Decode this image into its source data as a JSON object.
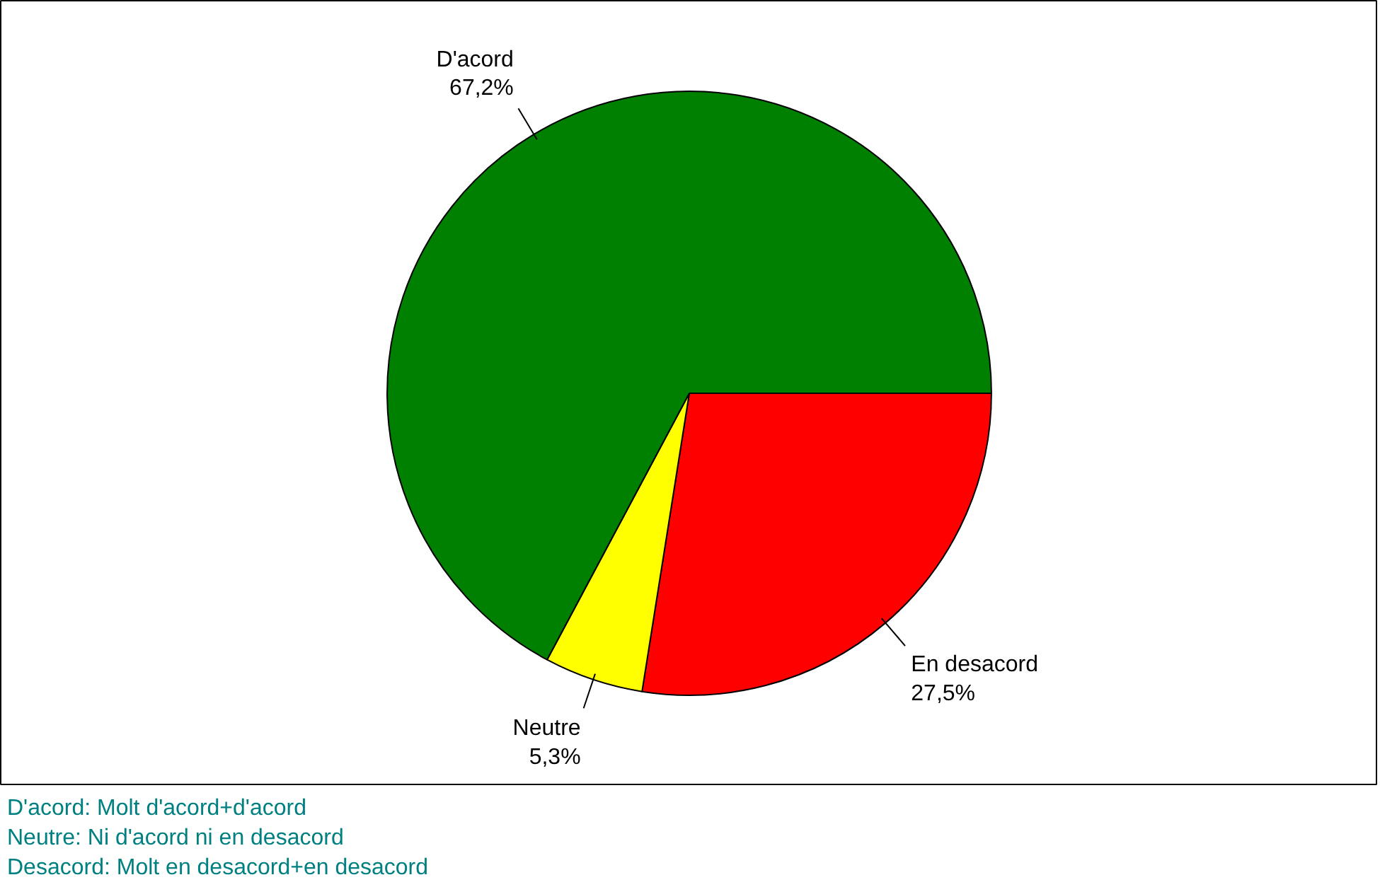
{
  "chart_data": {
    "type": "pie",
    "categories": [
      "En desacord",
      "Neutre",
      "D'acord"
    ],
    "values": [
      27.5,
      5.3,
      67.2
    ],
    "colors": [
      "#ff0000",
      "#ffff00",
      "#008000"
    ],
    "value_labels": [
      "27,5%",
      "5,3%",
      "67,2%"
    ],
    "annotations": [
      "D'acord: Molt d'acord+d'acord",
      "Neutre: Ni d'acord ni en desacord",
      "Desacord: Molt en desacord+en desacord"
    ]
  }
}
